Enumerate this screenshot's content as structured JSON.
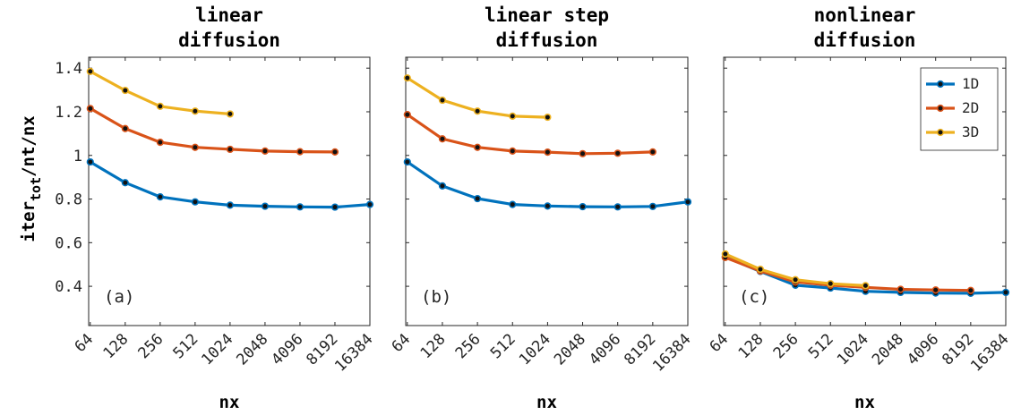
{
  "ylabel": {
    "main": "iter",
    "sub": "tot",
    "rest": "/nt/nx"
  },
  "chart_data": [
    {
      "type": "line",
      "title": [
        "linear",
        "diffusion"
      ],
      "panel_label": "(a)",
      "xlabel": "nx",
      "ylabel": "iter_tot/nt/nx",
      "x_scale": "log2",
      "x_ticks": [
        64,
        128,
        256,
        512,
        1024,
        2048,
        4096,
        8192,
        16384
      ],
      "y_ticks": [
        0.4,
        0.6,
        0.8,
        1.0,
        1.2,
        1.4
      ],
      "y_tick_labels": [
        "0.4",
        "0.6",
        "0.8",
        "1",
        "1.2",
        "1.4"
      ],
      "ylim": [
        0.22,
        1.45
      ],
      "xlim": [
        62,
        16384
      ],
      "series": [
        {
          "name": "1D",
          "color": "#0072BD",
          "x": [
            64,
            128,
            256,
            512,
            1024,
            2048,
            4096,
            8192,
            16384
          ],
          "values": [
            0.97,
            0.875,
            0.81,
            0.787,
            0.772,
            0.767,
            0.764,
            0.763,
            0.775
          ]
        },
        {
          "name": "2D",
          "color": "#D95319",
          "x": [
            64,
            128,
            256,
            512,
            1024,
            2048,
            4096,
            8192
          ],
          "values": [
            1.215,
            1.123,
            1.06,
            1.037,
            1.028,
            1.02,
            1.017,
            1.016
          ]
        },
        {
          "name": "3D",
          "color": "#EDB120",
          "x": [
            64,
            128,
            256,
            512,
            1024
          ],
          "values": [
            1.385,
            1.298,
            1.225,
            1.203,
            1.19
          ]
        }
      ]
    },
    {
      "type": "line",
      "title": [
        "linear step",
        "diffusion"
      ],
      "panel_label": "(b)",
      "xlabel": "nx",
      "x_scale": "log2",
      "x_ticks": [
        64,
        128,
        256,
        512,
        1024,
        2048,
        4096,
        8192,
        16384
      ],
      "ylim": [
        0.22,
        1.45
      ],
      "xlim": [
        62,
        16384
      ],
      "series": [
        {
          "name": "1D",
          "color": "#0072BD",
          "x": [
            64,
            128,
            256,
            512,
            1024,
            2048,
            4096,
            8192,
            16384
          ],
          "values": [
            0.97,
            0.86,
            0.802,
            0.775,
            0.768,
            0.765,
            0.764,
            0.766,
            0.787
          ]
        },
        {
          "name": "2D",
          "color": "#D95319",
          "x": [
            64,
            128,
            256,
            512,
            1024,
            2048,
            4096,
            8192
          ],
          "values": [
            1.187,
            1.076,
            1.037,
            1.02,
            1.015,
            1.008,
            1.01,
            1.016
          ]
        },
        {
          "name": "3D",
          "color": "#EDB120",
          "x": [
            64,
            128,
            256,
            512,
            1024
          ],
          "values": [
            1.355,
            1.253,
            1.203,
            1.18,
            1.175
          ]
        }
      ]
    },
    {
      "type": "line",
      "title": [
        "nonlinear",
        "diffusion"
      ],
      "panel_label": "(c)",
      "xlabel": "nx",
      "x_scale": "log2",
      "x_ticks": [
        64,
        128,
        256,
        512,
        1024,
        2048,
        4096,
        8192,
        16384
      ],
      "ylim": [
        0.22,
        1.45
      ],
      "xlim": [
        62,
        16384
      ],
      "legend_position": "top-right",
      "series": [
        {
          "name": "1D",
          "color": "#0072BD",
          "x": [
            64,
            128,
            256,
            512,
            1024,
            2048,
            4096,
            8192,
            16384
          ],
          "values": [
            0.535,
            0.468,
            0.405,
            0.392,
            0.377,
            0.372,
            0.369,
            0.368,
            0.372
          ]
        },
        {
          "name": "2D",
          "color": "#D95319",
          "x": [
            64,
            128,
            256,
            512,
            1024,
            2048,
            4096,
            8192
          ],
          "values": [
            0.532,
            0.47,
            0.42,
            0.405,
            0.395,
            0.386,
            0.383,
            0.381
          ]
        },
        {
          "name": "3D",
          "color": "#EDB120",
          "x": [
            64,
            128,
            256,
            512,
            1024
          ],
          "values": [
            0.548,
            0.478,
            0.43,
            0.412,
            0.403
          ]
        }
      ]
    }
  ]
}
